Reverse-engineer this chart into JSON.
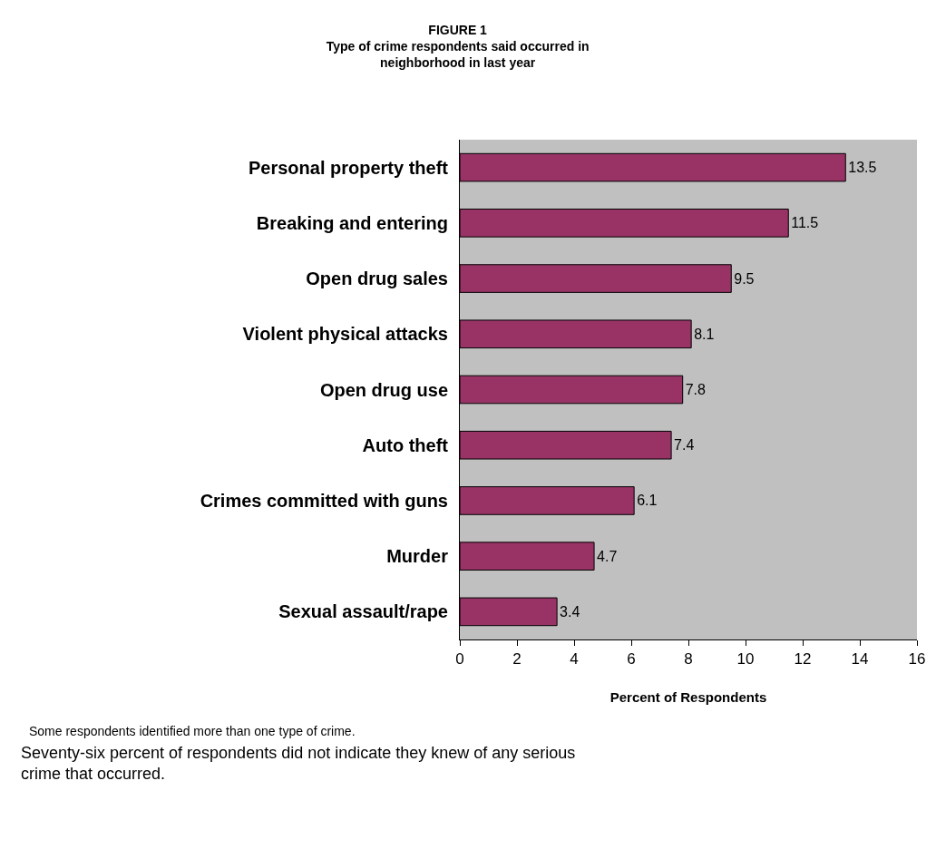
{
  "chart_data": {
    "type": "bar",
    "orientation": "horizontal",
    "title": "FIGURE 1\nType of crime respondents said occurred in\nneighborhood in last year",
    "xlabel": "Percent of Respondents",
    "categories": [
      "Personal property theft",
      "Breaking and entering",
      "Open drug sales",
      "Violent physical attacks",
      "Open drug use",
      "Auto theft",
      "Crimes committed with guns",
      "Murder",
      "Sexual assault/rape"
    ],
    "values": [
      13.5,
      11.5,
      9.5,
      8.1,
      7.8,
      7.4,
      6.1,
      4.7,
      3.4
    ],
    "color": "#993366",
    "xlim": [
      0,
      16
    ],
    "xticks": [
      0,
      2,
      4,
      6,
      8,
      10,
      12,
      14,
      16
    ],
    "data_labels": true,
    "grid": false,
    "legend": false,
    "annotations": [
      "Some respondents identified more than one type of crime.",
      "Seventy-six percent of respondents did not indicate they knew of any serious\ncrime that occurred."
    ]
  }
}
